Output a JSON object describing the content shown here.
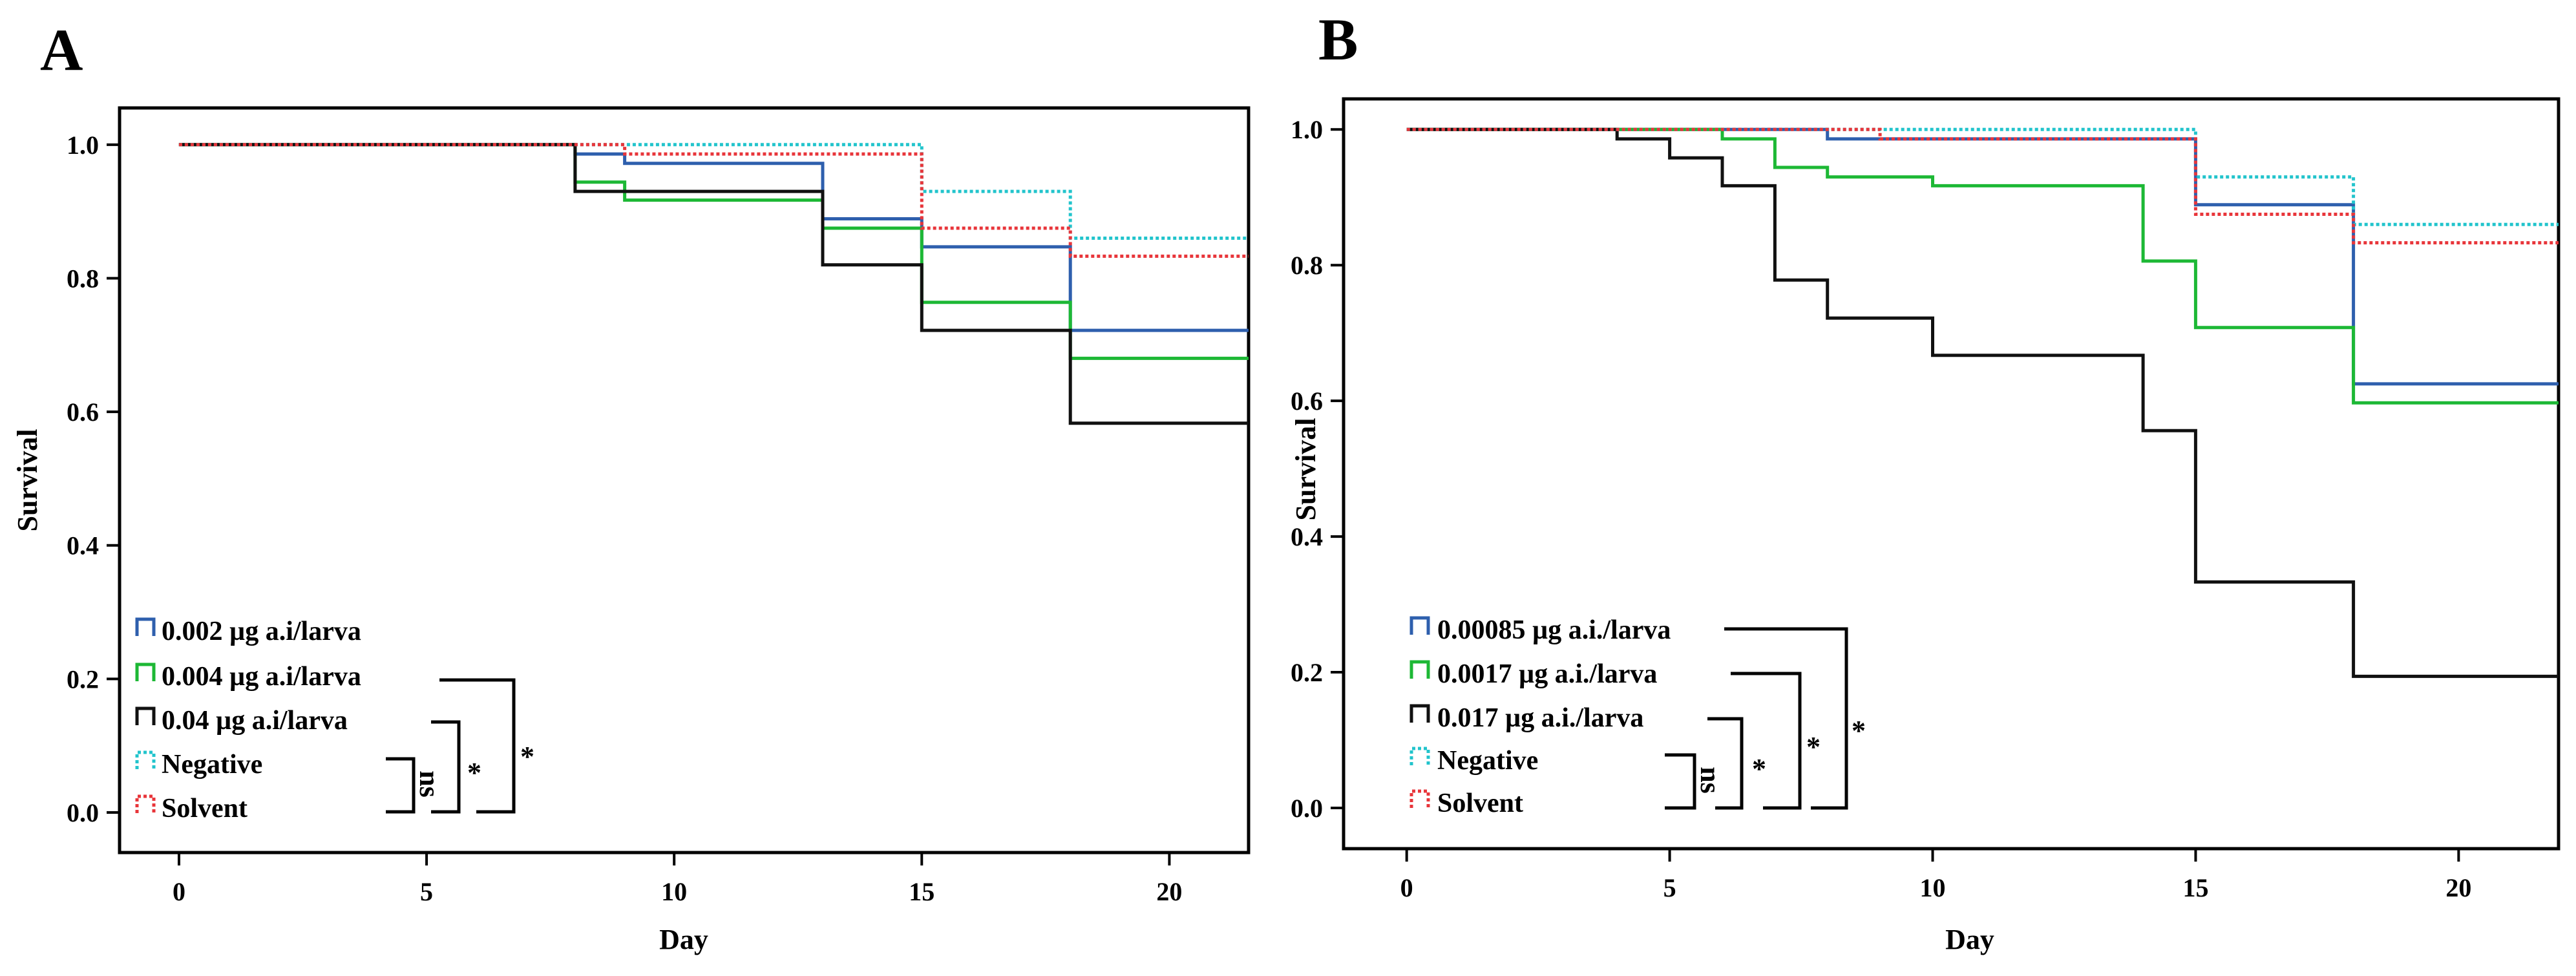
{
  "chart_data": [
    {
      "panel": "A",
      "type": "line",
      "step": true,
      "xlabel": "Day",
      "ylabel": "Survival",
      "xlim": [
        -1.2,
        21.6
      ],
      "ylim": [
        -0.06,
        1.055
      ],
      "xticks": [
        0,
        5,
        10,
        15,
        20
      ],
      "xtick_labels": [
        "0",
        "5",
        "10",
        "15",
        "20"
      ],
      "yticks": [
        0.0,
        0.2,
        0.4,
        0.6,
        0.8,
        1.0
      ],
      "ytick_labels": [
        "0.0",
        "0.2",
        "0.4",
        "0.6",
        "0.8",
        "1.0"
      ],
      "grid": false,
      "legend_position": "bottom-left",
      "series": [
        {
          "name": "0.002 µg a.i/larva",
          "color": "#2e5fad",
          "dashed": false,
          "x": [
            0,
            8,
            9,
            13,
            15,
            18,
            21.6
          ],
          "y": [
            1.0,
            0.986,
            0.972,
            0.889,
            0.847,
            0.722,
            0.722
          ]
        },
        {
          "name": "0.004 µg a.i/larva",
          "color": "#1db835",
          "dashed": false,
          "x": [
            0,
            8,
            9,
            13,
            15,
            18,
            21.6
          ],
          "y": [
            1.0,
            0.944,
            0.917,
            0.875,
            0.764,
            0.68,
            0.68
          ]
        },
        {
          "name": "0.04 µg a.i/larva",
          "color": "#111111",
          "dashed": false,
          "x": [
            0,
            8,
            13,
            15,
            18,
            21.6
          ],
          "y": [
            1.0,
            0.93,
            0.82,
            0.722,
            0.583,
            0.583
          ]
        },
        {
          "name": "Negative",
          "color": "#22c4cc",
          "dashed": true,
          "x": [
            0,
            15,
            18,
            21.6
          ],
          "y": [
            1.0,
            0.93,
            0.86,
            0.86
          ]
        },
        {
          "name": "Solvent",
          "color": "#e8353a",
          "dashed": true,
          "x": [
            0,
            9,
            15,
            18,
            21.6
          ],
          "y": [
            1.0,
            0.986,
            0.875,
            0.833,
            0.833
          ]
        }
      ],
      "significance": [
        "ns",
        "*",
        "*"
      ]
    },
    {
      "panel": "B",
      "type": "line",
      "step": true,
      "xlabel": "Day",
      "ylabel": "Survival",
      "xlim": [
        -1.2,
        21.9
      ],
      "ylim": [
        -0.06,
        1.045
      ],
      "xticks": [
        0,
        5,
        10,
        15,
        20
      ],
      "xtick_labels": [
        "0",
        "5",
        "10",
        "15",
        "20"
      ],
      "yticks": [
        0.0,
        0.2,
        0.4,
        0.6,
        0.8,
        1.0
      ],
      "ytick_labels": [
        "0.0",
        "0.2",
        "0.4",
        "0.6",
        "0.8",
        "1.0"
      ],
      "grid": false,
      "legend_position": "bottom-left",
      "series": [
        {
          "name": "0.00085 µg a.i./larva",
          "color": "#2e5fad",
          "dashed": false,
          "x": [
            0,
            8,
            9,
            15,
            18,
            21.9
          ],
          "y": [
            1.0,
            0.986,
            0.986,
            0.889,
            0.625,
            0.625
          ]
        },
        {
          "name": "0.0017 µg a.i./larva",
          "color": "#1db835",
          "dashed": false,
          "x": [
            0,
            6,
            7,
            8,
            10,
            14,
            15,
            18,
            21.9
          ],
          "y": [
            1.0,
            0.986,
            0.944,
            0.93,
            0.917,
            0.806,
            0.708,
            0.597,
            0.597
          ]
        },
        {
          "name": "0.017 µg a.i./larva",
          "color": "#111111",
          "dashed": false,
          "x": [
            0,
            4,
            5,
            6,
            7,
            8,
            10,
            14,
            15,
            18,
            21.9
          ],
          "y": [
            1.0,
            0.986,
            0.958,
            0.917,
            0.778,
            0.722,
            0.667,
            0.556,
            0.333,
            0.194,
            0.194
          ]
        },
        {
          "name": "Negative",
          "color": "#22c4cc",
          "dashed": true,
          "x": [
            0,
            15,
            18,
            21.9
          ],
          "y": [
            1.0,
            0.93,
            0.86,
            0.86
          ]
        },
        {
          "name": "Solvent",
          "color": "#e8353a",
          "dashed": true,
          "x": [
            0,
            9,
            15,
            18,
            21.9
          ],
          "y": [
            1.0,
            0.986,
            0.875,
            0.833,
            0.833
          ]
        }
      ],
      "significance": [
        "ns",
        "*",
        "*",
        "*"
      ]
    }
  ]
}
